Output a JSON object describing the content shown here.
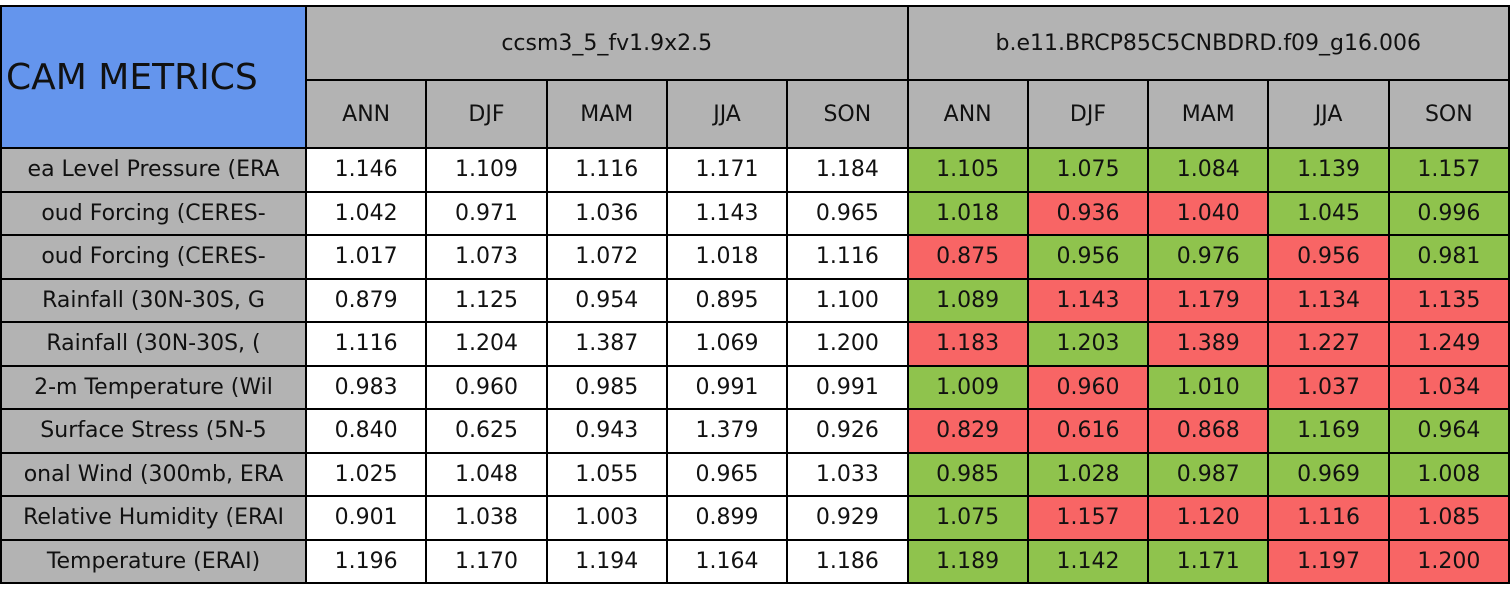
{
  "title": "CAM METRICS",
  "groups": [
    {
      "name": "ccsm3_5_fv1.9x2.5",
      "seasons": [
        "ANN",
        "DJF",
        "MAM",
        "JJA",
        "SON"
      ]
    },
    {
      "name": "b.e11.BRCP85C5CNBDRD.f09_g16.006",
      "seasons": [
        "ANN",
        "DJF",
        "MAM",
        "JJA",
        "SON"
      ]
    }
  ],
  "rows": [
    {
      "label": "ea Level Pressure (ERA",
      "values": [
        "1.146",
        "1.109",
        "1.116",
        "1.171",
        "1.184",
        "1.105",
        "1.075",
        "1.084",
        "1.139",
        "1.157"
      ],
      "colors": [
        "#8fc34d",
        "#8fc34d",
        "#8fc34d",
        "#8fc34d",
        "#8fc34d"
      ]
    },
    {
      "label": "oud Forcing (CERES-",
      "values": [
        "1.042",
        "0.971",
        "1.036",
        "1.143",
        "0.965",
        "1.018",
        "0.936",
        "1.040",
        "1.045",
        "0.996"
      ],
      "colors": [
        "#8fc34d",
        "#f86565",
        "#f86565",
        "#8fc34d",
        "#8fc34d"
      ]
    },
    {
      "label": "oud Forcing (CERES-",
      "values": [
        "1.017",
        "1.073",
        "1.072",
        "1.018",
        "1.116",
        "0.875",
        "0.956",
        "0.976",
        "0.956",
        "0.981"
      ],
      "colors": [
        "#f86565",
        "#8fc34d",
        "#8fc34d",
        "#f86565",
        "#8fc34d"
      ]
    },
    {
      "label": "Rainfall (30N-30S, G",
      "values": [
        "0.879",
        "1.125",
        "0.954",
        "0.895",
        "1.100",
        "1.089",
        "1.143",
        "1.179",
        "1.134",
        "1.135"
      ],
      "colors": [
        "#8fc34d",
        "#f86565",
        "#f86565",
        "#f86565",
        "#f86565"
      ]
    },
    {
      "label": "Rainfall (30N-30S, (",
      "values": [
        "1.116",
        "1.204",
        "1.387",
        "1.069",
        "1.200",
        "1.183",
        "1.203",
        "1.389",
        "1.227",
        "1.249"
      ],
      "colors": [
        "#f86565",
        "#8fc34d",
        "#f86565",
        "#f86565",
        "#f86565"
      ]
    },
    {
      "label": "2-m Temperature (Wil",
      "values": [
        "0.983",
        "0.960",
        "0.985",
        "0.991",
        "0.991",
        "1.009",
        "0.960",
        "1.010",
        "1.037",
        "1.034"
      ],
      "colors": [
        "#8fc34d",
        "#f86565",
        "#8fc34d",
        "#f86565",
        "#f86565"
      ]
    },
    {
      "label": "Surface Stress (5N-5",
      "values": [
        "0.840",
        "0.625",
        "0.943",
        "1.379",
        "0.926",
        "0.829",
        "0.616",
        "0.868",
        "1.169",
        "0.964"
      ],
      "colors": [
        "#f86565",
        "#f86565",
        "#f86565",
        "#8fc34d",
        "#8fc34d"
      ]
    },
    {
      "label": "onal Wind (300mb, ERA",
      "values": [
        "1.025",
        "1.048",
        "1.055",
        "0.965",
        "1.033",
        "0.985",
        "1.028",
        "0.987",
        "0.969",
        "1.008"
      ],
      "colors": [
        "#8fc34d",
        "#8fc34d",
        "#8fc34d",
        "#8fc34d",
        "#8fc34d"
      ]
    },
    {
      "label": "Relative Humidity (ERAI",
      "values": [
        "0.901",
        "1.038",
        "1.003",
        "0.899",
        "0.929",
        "1.075",
        "1.157",
        "1.120",
        "1.116",
        "1.085"
      ],
      "colors": [
        "#8fc34d",
        "#f86565",
        "#f86565",
        "#f86565",
        "#f86565"
      ]
    },
    {
      "label": "Temperature (ERAI)",
      "values": [
        "1.196",
        "1.170",
        "1.194",
        "1.164",
        "1.186",
        "1.189",
        "1.142",
        "1.171",
        "1.197",
        "1.200"
      ],
      "colors": [
        "#8fc34d",
        "#8fc34d",
        "#8fc34d",
        "#f86565",
        "#f86565"
      ]
    }
  ]
}
